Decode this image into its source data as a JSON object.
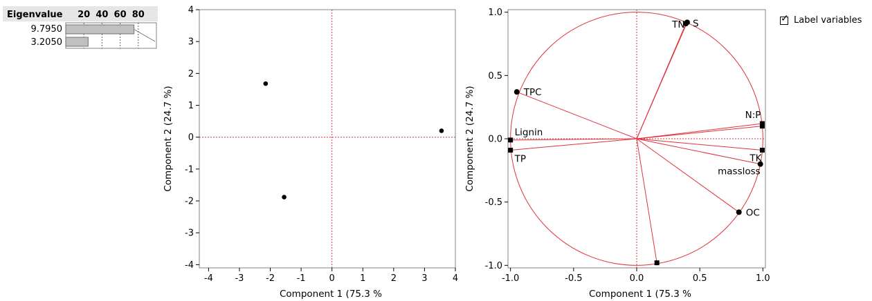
{
  "eigen": {
    "header": "Eigenvalue",
    "scale_ticks": [
      "20",
      "40",
      "60",
      "80"
    ],
    "rows": [
      {
        "value": "9.7950",
        "percent": 75.3
      },
      {
        "value": "3.2050",
        "percent": 24.7
      }
    ]
  },
  "controls": {
    "label_variables": "Label variables",
    "label_variables_checked": true
  },
  "colors": {
    "accent": "#e0303c",
    "bar": "#c0c0c0",
    "point": "#000000",
    "frame": "#808080"
  },
  "chart_data": [
    {
      "type": "scatter",
      "name": "score-plot",
      "title": "",
      "xlabel": "Component 1  (75.3 %",
      "ylabel": "Component 2  (24.7 %)",
      "xlim": [
        -4.3,
        4.0
      ],
      "ylim": [
        -4.1,
        4.0
      ],
      "xticks": [
        -4,
        -3,
        -2,
        -1,
        0,
        1,
        2,
        3,
        4
      ],
      "yticks": [
        -4,
        -3,
        -2,
        -1,
        0,
        1,
        2,
        3,
        4
      ],
      "reference_lines": {
        "x": 0,
        "y": 0,
        "style": "dotted",
        "color": "#e0303c"
      },
      "points": [
        {
          "x": -2.15,
          "y": 1.68
        },
        {
          "x": -1.55,
          "y": -1.88
        },
        {
          "x": 3.55,
          "y": 0.2
        }
      ]
    },
    {
      "type": "scatter",
      "name": "loading-plot",
      "title": "",
      "xlabel": "Component 1  (75.3 %",
      "ylabel": "Component 2  (24.7 %)",
      "xlim": [
        -1.02,
        1.02
      ],
      "ylim": [
        -1.02,
        1.02
      ],
      "xticks": [
        -1.0,
        -0.5,
        0.0,
        0.5,
        1.0
      ],
      "xtick_labels": [
        "-1.0",
        "-0.5",
        "0.0",
        "0.5",
        "1.0"
      ],
      "yticks": [
        -1.0,
        -0.5,
        0.0,
        0.5,
        1.0
      ],
      "ytick_labels": [
        "-1.0",
        "-0.5",
        "0.0",
        "0.5",
        "1.0"
      ],
      "unit_circle": true,
      "reference_lines": {
        "x": 0,
        "y": 0,
        "style": "dotted",
        "color": "#e0303c"
      },
      "points": [
        {
          "label": "TN",
          "x": 0.39,
          "y": 0.91,
          "marker": "circle"
        },
        {
          "label": "S",
          "x": 0.4,
          "y": 0.92,
          "marker": "circle"
        },
        {
          "label": "TPC",
          "x": -0.95,
          "y": 0.37,
          "marker": "circle"
        },
        {
          "label": "N:P",
          "x": 0.995,
          "y": 0.12,
          "marker": "square"
        },
        {
          "label": "",
          "x": 0.995,
          "y": 0.1,
          "marker": "square"
        },
        {
          "label": "Lignin",
          "x": -1.0,
          "y": -0.01,
          "marker": "square"
        },
        {
          "label": "TP",
          "x": -1.0,
          "y": -0.09,
          "marker": "square"
        },
        {
          "label": "TK",
          "x": 0.995,
          "y": -0.09,
          "marker": "square"
        },
        {
          "label": "massloss",
          "x": 0.98,
          "y": -0.2,
          "marker": "circle"
        },
        {
          "label": "OC",
          "x": 0.81,
          "y": -0.58,
          "marker": "circle"
        },
        {
          "label": "",
          "x": 0.16,
          "y": -0.98,
          "marker": "square"
        }
      ]
    }
  ]
}
